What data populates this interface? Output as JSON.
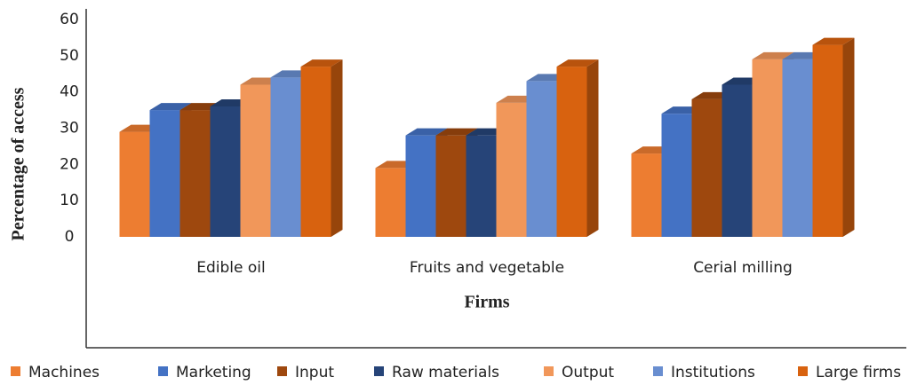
{
  "chart_data": {
    "type": "bar3d",
    "x_label": "Firms",
    "y_label": "Percentage of access",
    "categories": [
      "Edible oil",
      "Fruits and vegetable",
      "Cerial milling"
    ],
    "series": [
      {
        "name": "Machines",
        "color": "#ed7d31",
        "values": [
          29,
          19,
          23
        ]
      },
      {
        "name": "Marketing",
        "color": "#4472c4",
        "values": [
          35,
          28,
          34
        ]
      },
      {
        "name": "Input",
        "color": "#9e480e",
        "values": [
          35,
          28,
          38
        ]
      },
      {
        "name": "Raw materials",
        "color": "#264478",
        "values": [
          36,
          28,
          42
        ]
      },
      {
        "name": "Output",
        "color": "#f1975a",
        "values": [
          42,
          37,
          49
        ]
      },
      {
        "name": "Institutions",
        "color": "#698ed0",
        "values": [
          44,
          43,
          49
        ]
      },
      {
        "name": "Large firms",
        "color": "#d8620f",
        "values": [
          47,
          47,
          53
        ]
      }
    ],
    "ylim": [
      0,
      60
    ],
    "yticks": [
      0,
      10,
      20,
      30,
      40,
      50,
      60
    ],
    "legend": "bottom"
  }
}
